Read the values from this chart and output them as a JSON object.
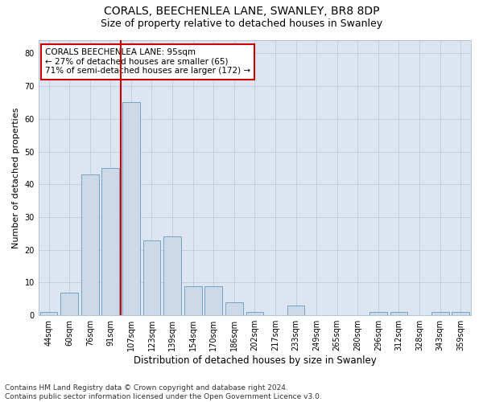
{
  "title1": "CORALS, BEECHENLEA LANE, SWANLEY, BR8 8DP",
  "title2": "Size of property relative to detached houses in Swanley",
  "xlabel": "Distribution of detached houses by size in Swanley",
  "ylabel": "Number of detached properties",
  "categories": [
    "44sqm",
    "60sqm",
    "76sqm",
    "91sqm",
    "107sqm",
    "123sqm",
    "139sqm",
    "154sqm",
    "170sqm",
    "186sqm",
    "202sqm",
    "217sqm",
    "233sqm",
    "249sqm",
    "265sqm",
    "280sqm",
    "296sqm",
    "312sqm",
    "328sqm",
    "343sqm",
    "359sqm"
  ],
  "values": [
    1,
    7,
    43,
    45,
    65,
    23,
    24,
    9,
    9,
    4,
    1,
    0,
    3,
    0,
    0,
    0,
    1,
    1,
    0,
    1,
    1
  ],
  "bar_color": "#ccd9e8",
  "bar_edge_color": "#6699bb",
  "vline_index": 4,
  "vline_color": "#cc0000",
  "annotation_text": "CORALS BEECHENLEA LANE: 95sqm\n← 27% of detached houses are smaller (65)\n71% of semi-detached houses are larger (172) →",
  "annotation_box_color": "#ffffff",
  "annotation_box_edge": "#cc0000",
  "ylim": [
    0,
    84
  ],
  "yticks": [
    0,
    10,
    20,
    30,
    40,
    50,
    60,
    70,
    80
  ],
  "grid_color": "#c5cfe0",
  "footnote": "Contains HM Land Registry data © Crown copyright and database right 2024.\nContains public sector information licensed under the Open Government Licence v3.0.",
  "bg_color": "#dde5f0",
  "title1_fontsize": 10,
  "title2_fontsize": 9,
  "xlabel_fontsize": 8.5,
  "ylabel_fontsize": 8,
  "tick_fontsize": 7,
  "annot_fontsize": 7.5,
  "footnote_fontsize": 6.5
}
